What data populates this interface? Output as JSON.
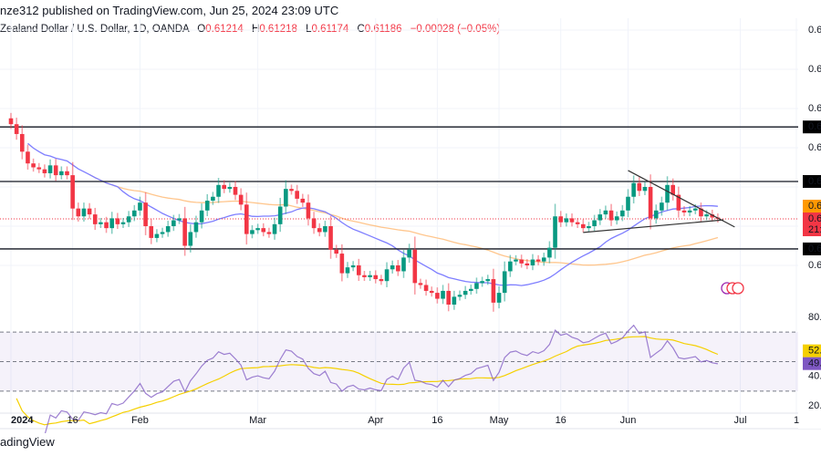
{
  "header": {
    "published": "nze312 published on TradingView.com, Jun 25, 2024 23:09 UTC",
    "symbol": "Zealand Dollar / U.S. Dollar, 1D, OANDA",
    "o_label": "O",
    "o": "0.61214",
    "h_label": "H",
    "h": "0.61218",
    "l_label": "L",
    "l": "0.61174",
    "c_label": "C",
    "c": "0.61186",
    "change": "−0.00028 (−0.05%)"
  },
  "footer": {
    "brand": "adingView"
  },
  "colors": {
    "up": "#089981",
    "down": "#f23645",
    "sma_fast": "#7e7eff",
    "sma_slow": "#ffb870",
    "rsi": "#7e57c2",
    "rsi_ma": "#f5d000",
    "level_line": "#131722"
  },
  "chart_data": {
    "type": "candlestick",
    "symbol": "NZD/USD",
    "interval": "1D",
    "start_date": "2024-01-01",
    "close": [
      0.636,
      0.6335,
      0.629,
      0.626,
      0.625,
      0.6245,
      0.6235,
      0.6255,
      0.623,
      0.624,
      0.623,
      0.6145,
      0.6125,
      0.6145,
      0.613,
      0.6105,
      0.611,
      0.6095,
      0.612,
      0.6105,
      0.611,
      0.6125,
      0.614,
      0.616,
      0.61,
      0.607,
      0.608,
      0.6085,
      0.61,
      0.6115,
      0.612,
      0.605,
      0.6085,
      0.611,
      0.614,
      0.6165,
      0.6175,
      0.6205,
      0.6195,
      0.62,
      0.618,
      0.6155,
      0.608,
      0.609,
      0.6095,
      0.6085,
      0.608,
      0.6105,
      0.615,
      0.6195,
      0.619,
      0.617,
      0.616,
      0.612,
      0.6095,
      0.6085,
      0.61,
      0.604,
      0.603,
      0.598,
      0.5995,
      0.6,
      0.5975,
      0.597,
      0.5975,
      0.5965,
      0.596,
      0.599,
      0.6,
      0.5985,
      0.602,
      0.604,
      0.5955,
      0.595,
      0.5935,
      0.593,
      0.5915,
      0.5935,
      0.59,
      0.592,
      0.5925,
      0.5935,
      0.594,
      0.5955,
      0.596,
      0.5965,
      0.5905,
      0.593,
      0.5985,
      0.601,
      0.6015,
      0.6005,
      0.6,
      0.6015,
      0.601,
      0.602,
      0.6045,
      0.6125,
      0.611,
      0.612,
      0.611,
      0.6105,
      0.6095,
      0.61,
      0.6115,
      0.613,
      0.614,
      0.6115,
      0.6125,
      0.614,
      0.6175,
      0.621,
      0.619,
      0.62,
      0.612,
      0.614,
      0.616,
      0.6205,
      0.618,
      0.614,
      0.6135,
      0.614,
      0.6145,
      0.6125,
      0.613,
      0.6122,
      0.61186
    ],
    "last_close": 0.61186,
    "horizontal_levels": [
      0.6353,
      0.6214,
      0.6042
    ],
    "trendlines": [
      {
        "from": [
          "2024-06-03",
          0.6242
        ],
        "to": [
          "2024-06-28",
          0.6098
        ]
      },
      {
        "from": [
          "2024-05-22",
          0.6084
        ],
        "to": [
          "2024-06-26",
          0.6116
        ]
      }
    ],
    "moving_averages": [
      {
        "type": "SMA",
        "color": "sma_fast"
      },
      {
        "type": "SMA",
        "color": "sma_slow"
      }
    ],
    "price_axis": {
      "ticks": [
        0.66,
        0.65,
        0.64,
        0.63,
        0.62,
        0.61,
        0.6
      ],
      "tick_labels": [
        "0.6",
        "0.6",
        "0.6",
        "0.6",
        "0.6",
        "0.6",
        "0.6"
      ],
      "ylim": [
        0.588,
        0.666
      ]
    },
    "price_tags": {
      "levels": [
        "0.6",
        "0.6",
        "0.6"
      ],
      "sma": "0.6",
      "last": "0.6",
      "countdown": "21:"
    },
    "x_ticks": [
      {
        "label": "2024",
        "date": "2024-01-01"
      },
      {
        "label": "16",
        "date": "2024-01-16"
      },
      {
        "label": "Feb",
        "date": "2024-02-01"
      },
      {
        "label": "Mar",
        "date": "2024-03-01"
      },
      {
        "label": "Apr",
        "date": "2024-04-01"
      },
      {
        "label": "16",
        "date": "2024-04-16"
      },
      {
        "label": "May",
        "date": "2024-05-01"
      },
      {
        "label": "16",
        "date": "2024-05-16"
      },
      {
        "label": "Jun",
        "date": "2024-06-03"
      },
      {
        "label": "Jul",
        "date": "2024-07-01"
      },
      {
        "label": "1",
        "date": "2024-07-15"
      }
    ],
    "rsi": {
      "ticks": [
        80,
        40,
        20
      ],
      "tick_labels": [
        "80.0",
        "40.0",
        "20.0"
      ],
      "bands": [
        70,
        50,
        30
      ],
      "value_tag": "49.",
      "ma_tag": "52.",
      "ylim": [
        18,
        82
      ]
    }
  }
}
